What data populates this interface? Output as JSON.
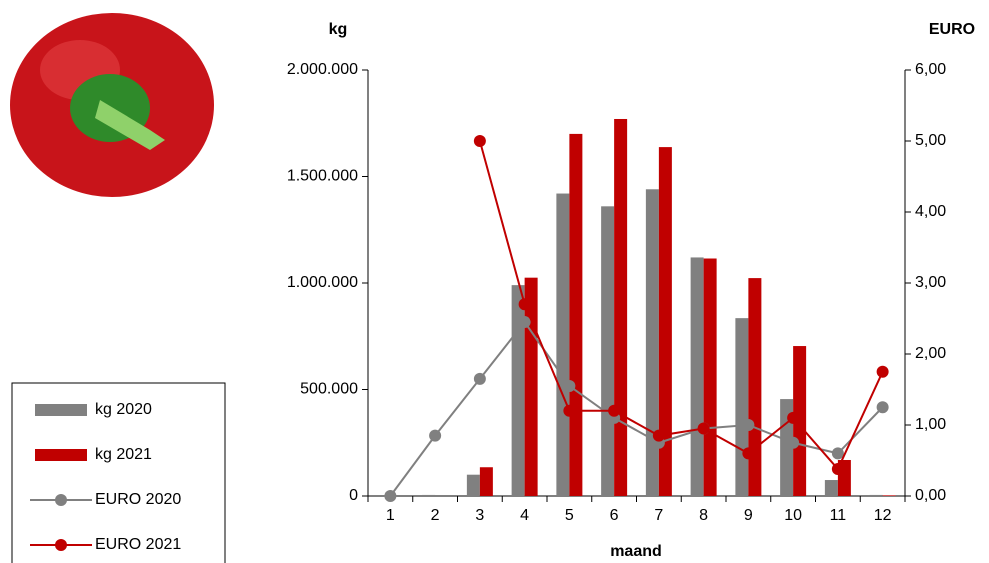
{
  "chart_data": {
    "type": "bar",
    "y_label": "kg",
    "y2_label": "EURO",
    "x_label": "maand",
    "categories": [
      "1",
      "2",
      "3",
      "4",
      "5",
      "6",
      "7",
      "8",
      "9",
      "10",
      "11",
      "12"
    ],
    "ylim": [
      0,
      2000000
    ],
    "yticks": [
      0,
      {
        "value": 500000,
        "label": "500.000"
      },
      {
        "value": 1000000,
        "label": "1.000.000"
      },
      {
        "value": 1500000,
        "label": "1.500.000"
      },
      {
        "value": 2000000,
        "label": "2.000.000"
      }
    ],
    "y2lim": [
      0,
      6
    ],
    "y2ticks": [
      {
        "value": 0,
        "label": "0,00"
      },
      {
        "value": 1,
        "label": "1,00"
      },
      {
        "value": 2,
        "label": "2,00"
      },
      {
        "value": 3,
        "label": "3,00"
      },
      {
        "value": 4,
        "label": "4,00"
      },
      {
        "value": 5,
        "label": "5,00"
      },
      {
        "value": 6,
        "label": "6,00"
      }
    ],
    "legend": "bottom-left",
    "series": [
      {
        "name": "kg 2020",
        "type": "bar",
        "color": "#808080",
        "values": [
          0,
          5000,
          100000,
          990000,
          1420000,
          1360000,
          1440000,
          1120000,
          835000,
          455000,
          75000,
          5000
        ]
      },
      {
        "name": "kg 2021",
        "type": "bar",
        "color": "#c00000",
        "values": [
          0,
          0,
          135000,
          1025000,
          1700000,
          1770000,
          1638000,
          1115000,
          1023000,
          704000,
          169000,
          3000
        ]
      },
      {
        "name": "EURO 2020",
        "type": "line",
        "axis": "y2",
        "color": "#808080",
        "values": [
          0,
          0.85,
          1.65,
          2.45,
          1.55,
          1.1,
          0.75,
          0.95,
          1.0,
          0.75,
          0.6,
          1.25
        ]
      },
      {
        "name": "EURO 2021",
        "type": "line",
        "axis": "y2",
        "color": "#c00000",
        "values": [
          null,
          null,
          5.0,
          2.7,
          1.2,
          1.2,
          0.85,
          0.95,
          0.6,
          1.1,
          0.38,
          1.75
        ]
      }
    ]
  }
}
